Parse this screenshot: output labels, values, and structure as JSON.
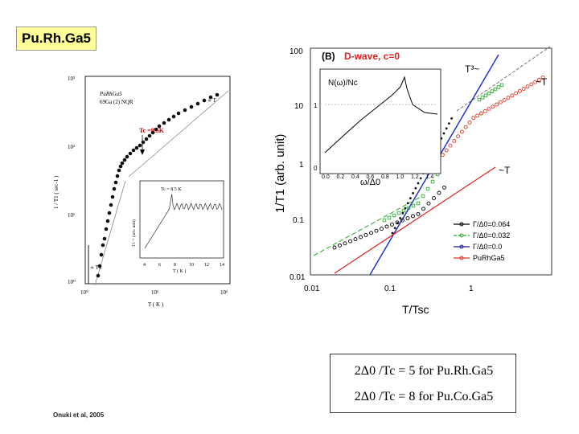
{
  "slide": {
    "title": "Pu.Rh.Ga5",
    "citation": "Onuki et al, 2005",
    "formula1": "2Δ0 /Tc = 5 for Pu.Rh.Ga5",
    "formula2": "2Δ0 /Tc = 8 for Pu.Co.Ga5"
  },
  "left_figure": {
    "legend_line1": "PuRhGa5",
    "legend_line2": "69Ga (2) NQR",
    "ylabel": "1 / T1 ( sec-1 )",
    "xlabel": "T ( K )",
    "tc_label": "Tc =8.5K",
    "slope_T": "∝ T",
    "slope_T3": "∝ T3",
    "y_ticks": [
      "10³",
      "10²",
      "10¹",
      "10⁰"
    ],
    "x_ticks": [
      "10⁰",
      "10¹",
      "10²"
    ],
    "inset_title": "Tc = 8.5 K",
    "inset_ylabel": "T1⁻¹ (arb. unit)",
    "inset_xlabel": "T ( K )",
    "inset_x_ticks": [
      "4",
      "6",
      "8",
      "10",
      "12",
      "14"
    ],
    "colors": {
      "data": "#111111",
      "tc_label": "#cc0000",
      "guide": "#888888"
    }
  },
  "right_figure": {
    "panel_label": "(B)",
    "panel_title": "D-wave, c=0",
    "ylabel": "1/T1 (arb. unit)",
    "xlabel": "T/Tsc",
    "y_ticks": [
      "100",
      "10",
      "1",
      "0.1",
      "0.01"
    ],
    "x_ticks": [
      "0.01",
      "0.1",
      "1"
    ],
    "annot_T3": "T³~",
    "annot_T_top": "~T",
    "annot_T_mid": "~T",
    "legend": [
      {
        "label": "Γ/Δ0=0.064",
        "color": "#000000"
      },
      {
        "label": "Γ/Δ0=0.032",
        "color": "#22aa22"
      },
      {
        "label": "Γ/Δ0=0.0",
        "color": "#1a1aa0"
      },
      {
        "label": "PuRhGa5",
        "color": "#dd3322"
      }
    ],
    "inset_ylabel": "N(ω)/Nc",
    "inset_xlabel": "ω/Δ0",
    "inset_x_ticks": [
      "0.0",
      "0.2",
      "0.4",
      "0.6",
      "0.8",
      "1.0",
      "1.2",
      "1.4"
    ],
    "inset_y_ticks": [
      "1",
      "0"
    ],
    "colors": {
      "blue_line": "#2233cc",
      "red_line": "#dd2222",
      "pink_line": "#e83a3a"
    }
  }
}
